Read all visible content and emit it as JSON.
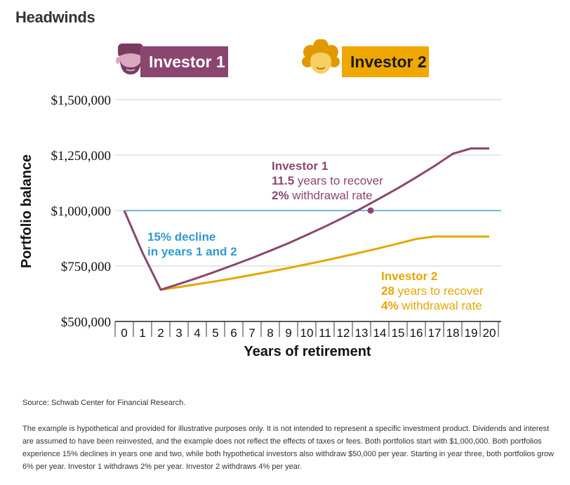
{
  "header": {
    "title": "Headwinds"
  },
  "legend": [
    {
      "label": "Investor 1",
      "color": "#8b4670"
    },
    {
      "label": "Investor 2",
      "color": "#f0a800"
    }
  ],
  "colors": {
    "investor1": "#8b4670",
    "investor2": "#e6a600",
    "baseline": "#4a9fcf",
    "decline_text": "#2f9bd1"
  },
  "chart_data": {
    "type": "line",
    "title": "",
    "xlabel": "Years of retirement",
    "ylabel": "Portfolio balance",
    "xlim": [
      0,
      20
    ],
    "ylim": [
      500000,
      1500000
    ],
    "x_ticks": [
      "0",
      "1",
      "2",
      "3",
      "4",
      "5",
      "6",
      "7",
      "8",
      "9",
      "10",
      "11",
      "12",
      "13",
      "14",
      "15",
      "16",
      "17",
      "18",
      "19",
      "20"
    ],
    "y_ticks": [
      {
        "value": 500000,
        "label": "$500,000"
      },
      {
        "value": 750000,
        "label": "$750,000"
      },
      {
        "value": 1000000,
        "label": "$1,000,000"
      },
      {
        "value": 1250000,
        "label": "$1,250,000"
      },
      {
        "value": 1500000,
        "label": "$1,500,000"
      }
    ],
    "reference_line": {
      "y": 1000000
    },
    "x": [
      0,
      1,
      2,
      3,
      4,
      5,
      6,
      7,
      8,
      9,
      10,
      11,
      12,
      13,
      14,
      15,
      16,
      17,
      18,
      19,
      20
    ],
    "series": [
      {
        "name": "Investor 1",
        "color": "#8b4670",
        "values": [
          1000000,
          810000,
          643000,
          669000,
          696000,
          725000,
          755000,
          786000,
          819000,
          853000,
          890000,
          928000,
          968000,
          1010000,
          1055000,
          1101000,
          1150000,
          1201000,
          1256000,
          1280000,
          1280000
        ]
      },
      {
        "name": "Investor 2",
        "color": "#e6a600",
        "values": [
          1000000,
          810000,
          643000,
          655000,
          668000,
          681000,
          695000,
          710000,
          725000,
          741000,
          758000,
          775000,
          793000,
          812000,
          831000,
          851000,
          872000,
          883000,
          883000,
          883000,
          883000
        ]
      }
    ],
    "recovery_point": {
      "x": 13.5,
      "y": 1000000
    },
    "annotations": {
      "decline": {
        "line1": "15% decline",
        "line2": "in years 1 and 2"
      },
      "investor1": {
        "name": "Investor 1",
        "years": "11.5",
        "years_text": " years to recover",
        "rate": "2%",
        "rate_text": " withdrawal rate"
      },
      "investor2": {
        "name": "Investor 2",
        "years": "28",
        "years_text": " years to recover",
        "rate": "4%",
        "rate_text": " withdrawal rate"
      }
    }
  },
  "footer": {
    "source": "Source: Schwab Center for Financial Research.",
    "note": "The example is hypothetical and provided for illustrative purposes only. It is not intended to represent a specific investment product. Dividends and interest are assumed to have been reinvested, and the example does not reflect the effects of taxes or fees. Both portfolios start with $1,000,000. Both portfolios experience 15% declines in years one and two, while both hypothetical investors also withdraw $50,000 per year. Starting in year three, both portfolios grow 6% per year. Investor 1 withdraws 2% per year. Investor 2 withdraws 4% per year."
  }
}
